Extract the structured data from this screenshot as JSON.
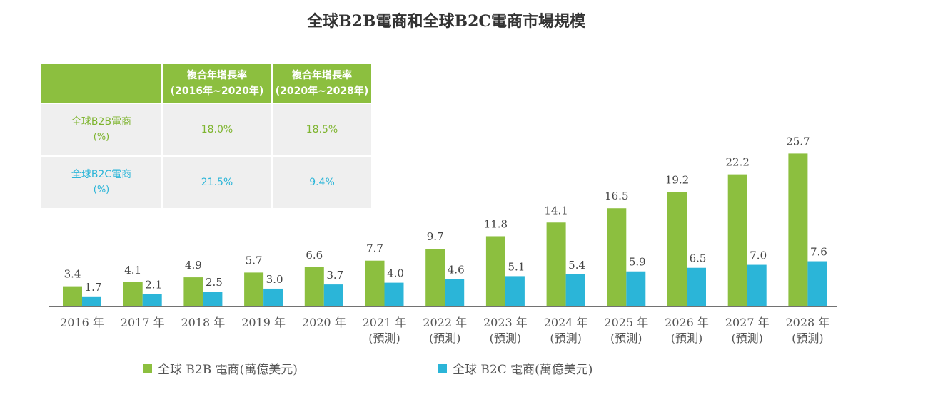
{
  "chart_data": {
    "type": "bar",
    "title": "全球B2B電商和全球B2C電商市場規模",
    "categories": [
      [
        "2016 年"
      ],
      [
        "2017 年"
      ],
      [
        "2018 年"
      ],
      [
        "2019 年"
      ],
      [
        "2020 年"
      ],
      [
        "2021 年",
        "(預測)"
      ],
      [
        "2022 年",
        "(預測)"
      ],
      [
        "2023 年",
        "(預測)"
      ],
      [
        "2024 年",
        "(預測)"
      ],
      [
        "2025 年",
        "(預測)"
      ],
      [
        "2026 年",
        "(預測)"
      ],
      [
        "2027 年",
        "(預測)"
      ],
      [
        "2028 年",
        "(預測)"
      ]
    ],
    "series": [
      {
        "name": "全球 B2B 電商(萬億美元)",
        "color": "#8cbf3f",
        "values": [
          3.4,
          4.1,
          4.9,
          5.7,
          6.6,
          7.7,
          9.7,
          11.8,
          14.1,
          16.5,
          19.2,
          22.2,
          25.7
        ]
      },
      {
        "name": "全球 B2C 電商(萬億美元)",
        "color": "#2bb5d8",
        "values": [
          1.7,
          2.1,
          2.5,
          3.0,
          3.7,
          4.0,
          4.6,
          5.1,
          5.4,
          5.9,
          6.5,
          7.0,
          7.6
        ]
      }
    ],
    "ylim": [
      0,
      27
    ],
    "xlabel": "",
    "ylabel": "",
    "legend_position": "bottom"
  },
  "cagr_table": {
    "headers": [
      [
        "複合年增長率",
        "(2016年~2020年)"
      ],
      [
        "複合年增長率",
        "(2020年~2028年)"
      ]
    ],
    "rows": [
      {
        "label": "全球B2B電商",
        "unit": "(%)",
        "values": [
          "18.0%",
          "18.5%"
        ]
      },
      {
        "label": "全球B2C電商",
        "unit": "(%)",
        "values": [
          "21.5%",
          "9.4%"
        ]
      }
    ]
  }
}
